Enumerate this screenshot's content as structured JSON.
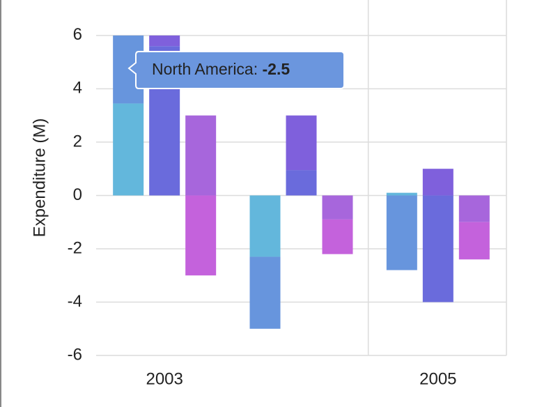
{
  "chart_data": {
    "type": "stacked-bar",
    "y_label": "Expenditure (M)",
    "categories": [
      "2003",
      null,
      "2005"
    ],
    "ylim": [
      -6,
      7.33
    ],
    "yticks": [
      -6,
      -4,
      -2,
      0,
      2,
      4,
      6
    ],
    "grid": true,
    "stacks": [
      {
        "series": [
          {
            "color": "#63b7dc",
            "values": [
              3.45,
              -2.3,
              0.1
            ]
          },
          {
            "color": "#6795dd",
            "values": [
              2.55,
              -2.7,
              -2.8
            ]
          }
        ]
      },
      {
        "series": [
          {
            "color": "#6a6bdc",
            "values": [
              5.6,
              0.95,
              -4
            ]
          },
          {
            "color": "#7f60dc",
            "values": [
              0.4,
              2.05,
              1
            ]
          }
        ]
      },
      {
        "series": [
          {
            "color": "#a766dc",
            "values": [
              3,
              -0.9,
              -1
            ]
          },
          {
            "color": "#c462dc",
            "values": [
              -3,
              -1.3,
              -1.4
            ]
          }
        ]
      }
    ],
    "tooltip": {
      "label": "North America:",
      "value": -2.5
    }
  }
}
